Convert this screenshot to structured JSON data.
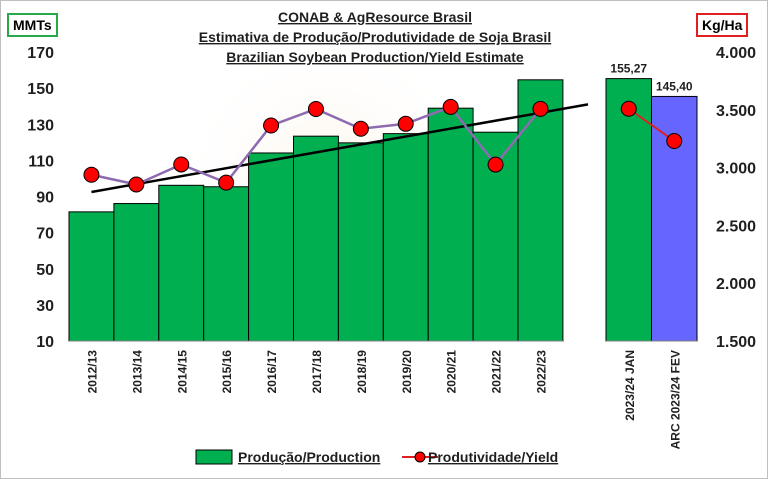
{
  "header": {
    "title_line1": "CONAB & AgResource Brasil",
    "title_line2": "Estimativa de Produção/Produtividade de Soja Brasil",
    "title_line3": "Brazilian Soybean Production/Yield Estimate"
  },
  "units": {
    "left": "MMTs",
    "right": "Kg/Ha"
  },
  "legend": {
    "production": "Produção/Production",
    "yield": "Produtividade/Yield"
  },
  "colors": {
    "production_bar": "#00b050",
    "arc_bar": "#6666ff",
    "yield_line": "#8e6bb0",
    "yield_marker": "#ff0000",
    "trend_line": "#000000",
    "projection_line": "#e02020"
  },
  "chart_data": {
    "type": "bar",
    "categories": [
      "2012/13",
      "2013/14",
      "2014/15",
      "2015/16",
      "2016/17",
      "2017/18",
      "2018/19",
      "2019/20",
      "2020/21",
      "2021/22",
      "2022/23"
    ],
    "forecast_categories": [
      "2023/24 JAN",
      "ARC 2023/24 FEV"
    ],
    "forecast_labels": [
      "155,27",
      "145,40"
    ],
    "y_left": {
      "ticks": [
        "10",
        "30",
        "50",
        "70",
        "90",
        "110",
        "130",
        "150",
        "170"
      ],
      "ylim": [
        10,
        170
      ]
    },
    "y_right": {
      "ticks": [
        "1.500",
        "2.000",
        "2.500",
        "3.000",
        "3.500",
        "4.000"
      ],
      "ylim": [
        1500,
        4000
      ]
    },
    "series": [
      {
        "name": "Produção/Production",
        "axis": "left",
        "values": [
          81.5,
          86.1,
          96.2,
          95.4,
          114.1,
          123.4,
          119.7,
          124.8,
          138.9,
          125.6,
          154.6
        ],
        "forecast_values": [
          155.27,
          145.4
        ]
      },
      {
        "name": "Produtividade/Yield",
        "axis": "right",
        "values": [
          2938,
          2854,
          3027,
          2870,
          3364,
          3507,
          3336,
          3379,
          3525,
          3026,
          3508
        ],
        "forecast_values": [
          3509,
          3230
        ]
      }
    ],
    "trendline": {
      "axis": "left",
      "start": 92.5,
      "end": 141
    }
  }
}
